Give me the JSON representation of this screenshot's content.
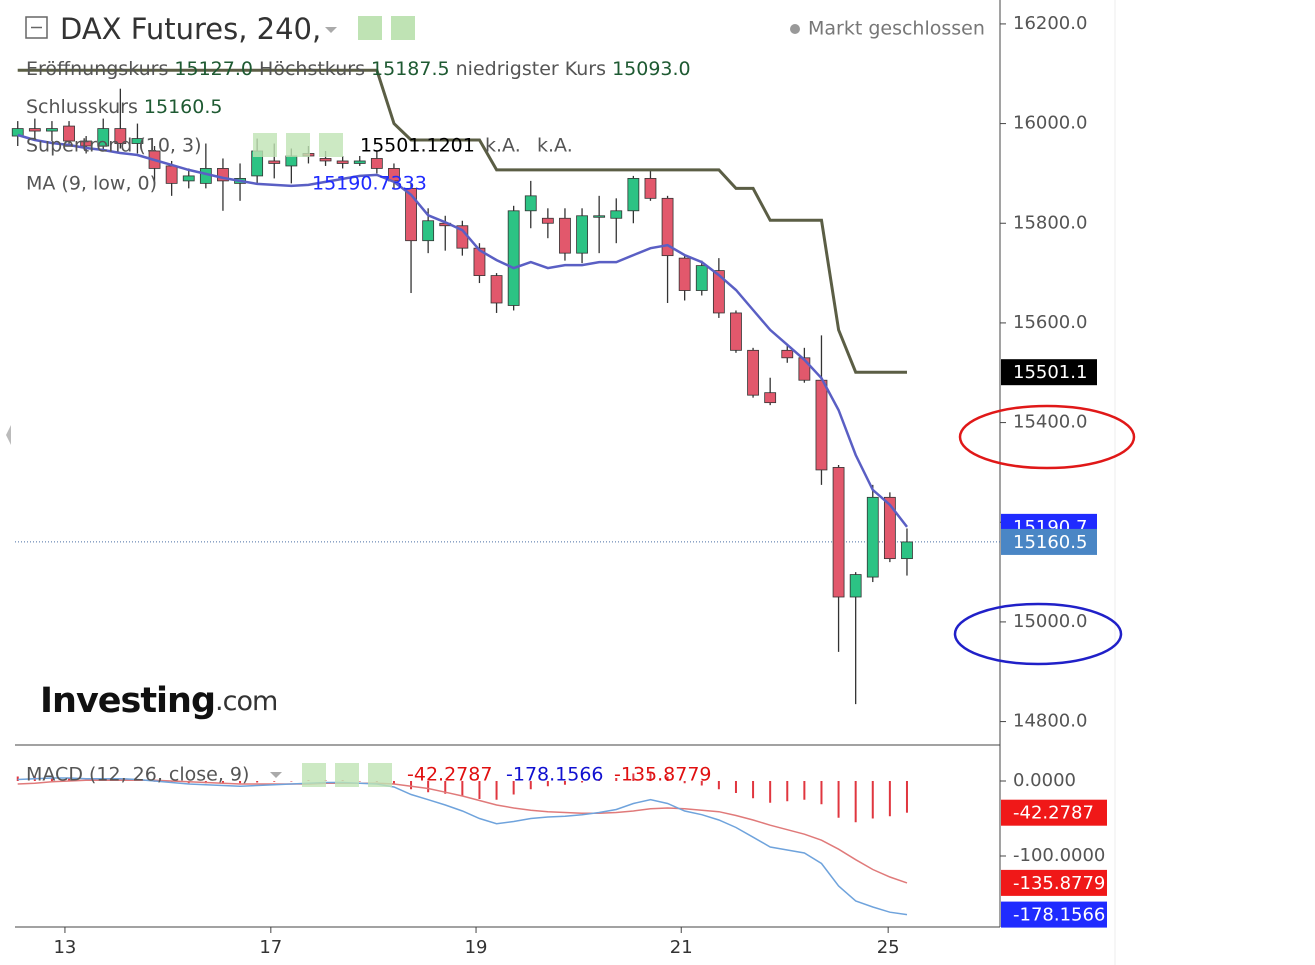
{
  "chart_data": [
    {
      "type": "candlestick",
      "title": "DAX Futures, 240,",
      "status": "Markt geschlossen",
      "ohlc_legend": [
        {
          "label": "Eröffnungskurs",
          "value": "15127.0"
        },
        {
          "label": "Höchstkurs",
          "value": "15187.5"
        },
        {
          "label": "niedrigster Kurs",
          "value": "15093.0"
        },
        {
          "label": "Schlusskurs",
          "value": "15160.5"
        }
      ],
      "x": [
        0,
        1,
        2,
        3,
        4,
        5,
        6,
        7,
        8,
        9,
        10,
        11,
        12,
        13,
        14,
        15,
        16,
        17,
        18,
        19,
        20,
        21,
        22,
        23,
        24,
        25,
        26,
        27,
        28,
        29,
        30,
        31,
        32,
        33,
        34,
        35,
        36,
        37,
        38,
        39,
        40,
        41,
        42,
        43,
        44,
        45,
        46,
        47,
        48,
        49,
        50,
        51,
        52
      ],
      "open": [
        15975,
        15990,
        15985,
        15995,
        15965,
        15955,
        15990,
        15960,
        15945,
        15915,
        15885,
        15880,
        15910,
        15880,
        15895,
        15925,
        15915,
        15940,
        15930,
        15925,
        15920,
        15930,
        15910,
        15870,
        15765,
        15800,
        15795,
        15750,
        15695,
        15635,
        15825,
        15810,
        15810,
        15740,
        15815,
        15810,
        15825,
        15890,
        15850,
        15730,
        15665,
        15705,
        15620,
        15545,
        15460,
        15545,
        15530,
        15485,
        15310,
        15050,
        15090,
        15250,
        15127
      ],
      "high": [
        16005,
        16010,
        16005,
        16005,
        15975,
        16010,
        16070,
        16000,
        15955,
        15925,
        15910,
        15960,
        15930,
        15920,
        15970,
        15960,
        15950,
        15955,
        15945,
        15935,
        15935,
        15945,
        15920,
        15880,
        15830,
        15815,
        15805,
        15760,
        15700,
        15835,
        15885,
        15830,
        15830,
        15830,
        15855,
        15850,
        15895,
        15905,
        15855,
        15735,
        15725,
        15730,
        15625,
        15550,
        15490,
        15555,
        15550,
        15575,
        15315,
        15100,
        15275,
        15260,
        15187.5
      ],
      "low": [
        15955,
        15970,
        15965,
        15955,
        15940,
        15945,
        15950,
        15940,
        15880,
        15855,
        15870,
        15870,
        15825,
        15845,
        15880,
        15890,
        15880,
        15920,
        15915,
        15910,
        15915,
        15900,
        15870,
        15660,
        15740,
        15745,
        15735,
        15680,
        15620,
        15625,
        15790,
        15770,
        15725,
        15720,
        15740,
        15760,
        15800,
        15845,
        15640,
        15645,
        15655,
        15610,
        15540,
        15450,
        15435,
        15520,
        15480,
        15275,
        14940,
        14835,
        15080,
        15120,
        15093
      ],
      "close": [
        15990,
        15985,
        15990,
        15965,
        15955,
        15990,
        15960,
        15970,
        15910,
        15880,
        15895,
        15910,
        15885,
        15890,
        15945,
        15920,
        15935,
        15935,
        15925,
        15920,
        15925,
        15910,
        15885,
        15765,
        15805,
        15795,
        15750,
        15695,
        15640,
        15825,
        15855,
        15800,
        15740,
        15815,
        15815,
        15825,
        15890,
        15850,
        15735,
        15665,
        15715,
        15620,
        15545,
        15455,
        15440,
        15530,
        15485,
        15305,
        15050,
        15095,
        15250,
        15127,
        15160.5
      ],
      "up_color": "#2cc384",
      "down_color": "#e2586c",
      "close_label": "15160.5",
      "close_label_color": "#4a86c5",
      "series": [
        {
          "name": "Supertrend (10, 3)",
          "color": "#5b5e45",
          "values": [
            16107,
            16107,
            16107,
            16107,
            16107,
            16107,
            16107,
            16107,
            16107,
            16107,
            16107,
            16107,
            16107,
            16107,
            16107,
            16107,
            16107,
            16107,
            16107,
            16107,
            16107,
            16107,
            16000,
            15967,
            15967,
            15967,
            15967,
            15967,
            15907,
            15907,
            15907,
            15907,
            15907,
            15907,
            15907,
            15907,
            15907,
            15907,
            15907,
            15907,
            15907,
            15907,
            15870,
            15870,
            15806,
            15806,
            15806,
            15806,
            15586,
            15501.12,
            15501.12,
            15501.12,
            15501.12
          ],
          "legend_value": "15501.1201",
          "legend_extra": [
            "k.A.",
            "k.A."
          ],
          "last_label": "15501.1",
          "label_color": "#000000",
          "legend_color": "#000000"
        },
        {
          "name": "MA (9, low, 0)",
          "color": "#5a5fc4",
          "values": [
            15977,
            15967,
            15961,
            15957,
            15951,
            15947,
            15941,
            15937,
            15927,
            15917,
            15907,
            15899,
            15891,
            15885,
            15879,
            15877,
            15875,
            15877,
            15883,
            15889,
            15895,
            15897,
            15883,
            15857,
            15816,
            15802,
            15786,
            15746,
            15726,
            15710,
            15722,
            15710,
            15716,
            15716,
            15722,
            15722,
            15736,
            15750,
            15756,
            15736,
            15722,
            15696,
            15666,
            15626,
            15586,
            15556,
            15526,
            15489,
            15425,
            15335,
            15265,
            15235,
            15190.73
          ],
          "legend_value": "15190.7333",
          "last_label": "15190.7",
          "label_color": "#1f2bff",
          "legend_color": "#1f2bff"
        }
      ],
      "xlim": [
        -0.16,
        57.44
      ],
      "xticks": [
        {
          "value": 2.76,
          "label": "13"
        },
        {
          "value": 14.8,
          "label": "17"
        },
        {
          "value": 26.8,
          "label": "19"
        },
        {
          "value": 38.8,
          "label": "21"
        },
        {
          "value": 50.9,
          "label": "25"
        }
      ],
      "ylim": [
        14753,
        16248
      ],
      "yticks": [
        {
          "value": 14800,
          "label": "14800.0"
        },
        {
          "value": 15000,
          "label": "15000.0"
        },
        {
          "value": 15200,
          "label": "15200.0"
        },
        {
          "value": 15400,
          "label": "15400.0"
        },
        {
          "value": 15600,
          "label": "15600.0"
        },
        {
          "value": 15800,
          "label": "15800.0"
        },
        {
          "value": 16000,
          "label": "16000.0"
        },
        {
          "value": 16200,
          "label": "16200.0"
        }
      ],
      "watermark": [
        "Investing",
        ".com"
      ]
    },
    {
      "type": "macd",
      "title": "MACD (12, 26, close, 9)",
      "x": [
        0,
        1,
        2,
        3,
        4,
        5,
        6,
        7,
        8,
        9,
        10,
        11,
        12,
        13,
        14,
        15,
        16,
        17,
        18,
        19,
        20,
        21,
        22,
        23,
        24,
        25,
        26,
        27,
        28,
        29,
        30,
        31,
        32,
        33,
        34,
        35,
        36,
        37,
        38,
        39,
        40,
        41,
        42,
        43,
        44,
        45,
        46,
        47,
        48,
        49,
        50,
        51,
        52
      ],
      "histogram": {
        "color": "#e0363f",
        "values": [
          6,
          6,
          5,
          4,
          2,
          2,
          2,
          1,
          -1,
          -2,
          -3,
          -3,
          -3,
          -3,
          -2,
          -1,
          0,
          1,
          1,
          1,
          0,
          -1,
          -4,
          -11,
          -15,
          -17,
          -20,
          -24,
          -25,
          -18,
          -11,
          -7,
          -5,
          -2,
          1,
          4,
          10,
          12,
          6,
          -3,
          -6,
          -11,
          -16,
          -23,
          -29,
          -27,
          -25,
          -31,
          -49,
          -55,
          -50,
          -47,
          -42.2787
        ],
        "legend_value": "-42.2787",
        "legend_color": "#e01010",
        "last_label": "-42.2787",
        "label_color": "#f01818"
      },
      "macd": {
        "color": "#6fa3dc",
        "values": [
          2,
          3,
          4,
          4,
          3,
          3,
          3,
          2,
          0,
          -2,
          -4,
          -5,
          -6,
          -7,
          -6,
          -5,
          -4,
          -3,
          -2,
          -2,
          -3,
          -4,
          -8,
          -18,
          -25,
          -32,
          -40,
          -50,
          -57,
          -54,
          -50,
          -48,
          -47,
          -45,
          -42,
          -38,
          -30,
          -25,
          -30,
          -40,
          -45,
          -52,
          -62,
          -75,
          -88,
          -92,
          -96,
          -110,
          -140,
          -160,
          -168,
          -175,
          -178.1566
        ],
        "legend_value": "-178.1566",
        "legend_color": "#1010d0",
        "last_label": "-178.1566",
        "label_color": "#1f2bff"
      },
      "signal": {
        "color": "#e07a7a",
        "values": [
          -4,
          -3,
          -1,
          0,
          1,
          1,
          1,
          1,
          1,
          0,
          -1,
          -2,
          -3,
          -4,
          -4,
          -4,
          -4,
          -4,
          -3,
          -3,
          -3,
          -3,
          -4,
          -7,
          -10,
          -15,
          -20,
          -26,
          -32,
          -36,
          -39,
          -41,
          -42,
          -43,
          -43,
          -42,
          -40,
          -37,
          -36,
          -37,
          -39,
          -41,
          -46,
          -52,
          -59,
          -65,
          -71,
          -79,
          -91,
          -105,
          -118,
          -128,
          -135.8779
        ],
        "legend_value": "-135.8779",
        "legend_color": "#e01010",
        "last_label": "-135.8779",
        "label_color": "#f01818"
      },
      "xlim": [
        -0.16,
        57.44
      ],
      "ylim": [
        -194.7,
        48
      ],
      "yticks": [
        {
          "value": 0,
          "label": "0.0000"
        },
        {
          "value": -100,
          "label": "-100.0000"
        }
      ]
    }
  ]
}
